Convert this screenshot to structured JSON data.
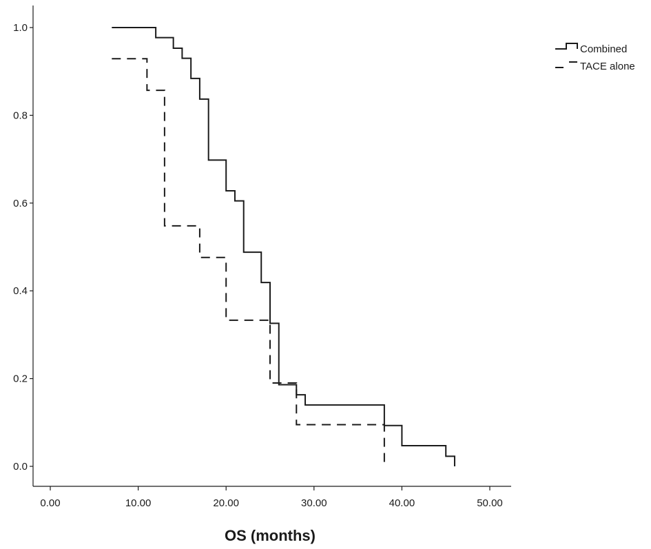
{
  "chart_data": {
    "type": "line",
    "subtype": "step",
    "title": "",
    "xlabel": "OS (months)",
    "ylabel": "",
    "xlim": [
      0,
      50
    ],
    "ylim": [
      0,
      1
    ],
    "x_ticks": [
      "0.00",
      "10.00",
      "20.00",
      "30.00",
      "40.00",
      "50.00"
    ],
    "x_tick_values": [
      0,
      10,
      20,
      30,
      40,
      50
    ],
    "y_ticks": [
      "0.0",
      "0.2",
      "0.4",
      "0.6",
      "0.8",
      "1.0"
    ],
    "y_tick_values": [
      0,
      0.2,
      0.4,
      0.6,
      0.8,
      1.0
    ],
    "grid": false,
    "legend_position": "top-right",
    "series": [
      {
        "name": "Combined",
        "line_style": "solid",
        "color": "#1a1a1a",
        "x": [
          7,
          12,
          14,
          15,
          16,
          17,
          18,
          20,
          21,
          22,
          24,
          25,
          26,
          28,
          29,
          38,
          40,
          45,
          46
        ],
        "y": [
          1.0,
          0.977,
          0.953,
          0.93,
          0.884,
          0.837,
          0.698,
          0.628,
          0.605,
          0.488,
          0.419,
          0.326,
          0.186,
          0.163,
          0.14,
          0.093,
          0.047,
          0.023,
          0.0
        ]
      },
      {
        "name": "TACE alone",
        "line_style": "dashed",
        "color": "#1a1a1a",
        "x": [
          7,
          11,
          13,
          17,
          20,
          25,
          28,
          38
        ],
        "y": [
          0.929,
          0.857,
          0.548,
          0.476,
          0.333,
          0.19,
          0.095,
          0.0
        ]
      }
    ]
  }
}
